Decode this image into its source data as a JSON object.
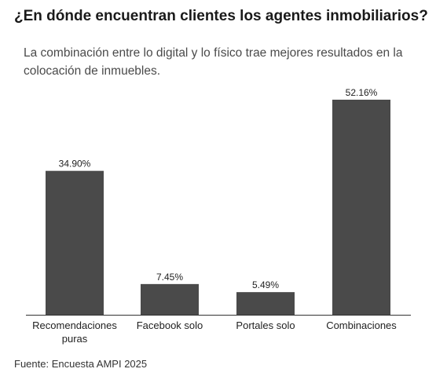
{
  "title": "¿En dónde encuentran clientes los agentes inmobiliarios?",
  "subtitle": "La combinación entre lo digital y lo físico trae mejores resultados en la colocación de inmuebles.",
  "source": "Fuente: Encuesta AMPI 2025",
  "colors": {
    "bar": "#4a4a4a",
    "axis": "#333333",
    "text": "#222222"
  },
  "chart_data": {
    "type": "bar",
    "categories": [
      [
        "Recomendaciones",
        "puras"
      ],
      [
        "Facebook solo"
      ],
      [
        "Portales solo"
      ],
      [
        "Combinaciones"
      ]
    ],
    "values": [
      34.9,
      7.45,
      5.49,
      52.16
    ],
    "value_labels": [
      "34.90%",
      "7.45%",
      "5.49%",
      "52.16%"
    ],
    "ylim": [
      0,
      52.16
    ],
    "grid": false,
    "legend": "none"
  }
}
